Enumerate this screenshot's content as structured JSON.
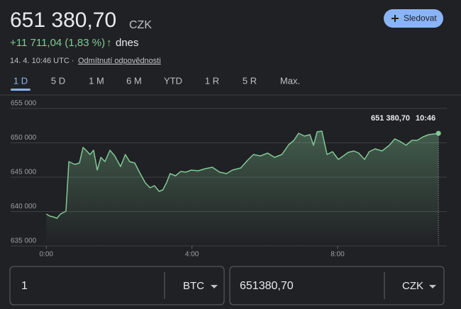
{
  "header": {
    "price": "651 380,70",
    "currency": "CZK",
    "change": "+11 711,04 (1,83 %)",
    "change_arrow": "↑",
    "change_period": "dnes",
    "timestamp": "14. 4. 10:46 UTC ·",
    "disclaimer": "Odmítnutí odpovědnosti",
    "follow_button": "Sledovat"
  },
  "tabs": {
    "items": [
      "1 D",
      "5 D",
      "1 M",
      "6 M",
      "YTD",
      "1 R",
      "5 R",
      "Max."
    ],
    "selected": 0
  },
  "chart_data": {
    "type": "line",
    "color": "#81c995",
    "x": [
      0,
      0.1,
      0.19,
      0.29,
      0.39,
      0.54,
      0.62,
      0.78,
      0.91,
      1.01,
      1.11,
      1.2,
      1.3,
      1.4,
      1.5,
      1.61,
      1.75,
      1.88,
      2.04,
      2.17,
      2.29,
      2.43,
      2.58,
      2.72,
      2.85,
      2.97,
      3.1,
      3.2,
      3.3,
      3.4,
      3.55,
      3.69,
      3.83,
      3.98,
      4.17,
      4.37,
      4.56,
      4.76,
      4.95,
      5.11,
      5.34,
      5.53,
      5.69,
      5.88,
      6.08,
      6.27,
      6.47,
      6.66,
      6.8,
      6.93,
      7.09,
      7.24,
      7.34,
      7.44,
      7.57,
      7.71,
      7.86,
      8.02,
      8.16,
      8.29,
      8.45,
      8.58,
      8.74,
      8.87,
      9.03,
      9.22,
      9.42,
      9.57,
      9.73,
      9.88,
      10.04,
      10.19,
      10.35,
      10.5,
      10.66,
      10.77
    ],
    "values": [
      639640,
      639330,
      639230,
      639020,
      639640,
      640050,
      647270,
      646860,
      647060,
      649330,
      648810,
      648300,
      648920,
      646030,
      647890,
      647270,
      648920,
      648090,
      646550,
      648300,
      647270,
      647060,
      645520,
      644180,
      643450,
      643760,
      642940,
      643140,
      644180,
      645520,
      645210,
      645830,
      645730,
      646030,
      645930,
      646240,
      646440,
      645730,
      645520,
      646030,
      646340,
      647470,
      648300,
      648090,
      648510,
      647890,
      648300,
      649740,
      650360,
      651390,
      650980,
      651190,
      649640,
      651600,
      651700,
      648300,
      648710,
      647580,
      648090,
      648610,
      648810,
      648510,
      647580,
      648710,
      649120,
      648810,
      649640,
      650570,
      650160,
      649640,
      650360,
      650360,
      650880,
      651190,
      651290,
      651380.7
    ],
    "xlim": [
      -0.2,
      11
    ],
    "xticks": [
      {
        "value": 0,
        "label": "0:00"
      },
      {
        "value": 4,
        "label": "4:00"
      },
      {
        "value": 8,
        "label": "8:00"
      }
    ],
    "ylim": [
      635000,
      655000
    ],
    "yticks": [
      {
        "value": 635000,
        "label": "635 000"
      },
      {
        "value": 640000,
        "label": "640 000"
      },
      {
        "value": 645000,
        "label": "645 000"
      },
      {
        "value": 650000,
        "label": "650 000"
      },
      {
        "value": 655000,
        "label": "655 000"
      }
    ],
    "grid": true,
    "annotation": {
      "value": "651 380,70",
      "time": "10:46"
    }
  },
  "converter": {
    "from_amount": "1",
    "from_unit": "BTC",
    "to_amount": "651380,70",
    "to_unit": "CZK"
  }
}
